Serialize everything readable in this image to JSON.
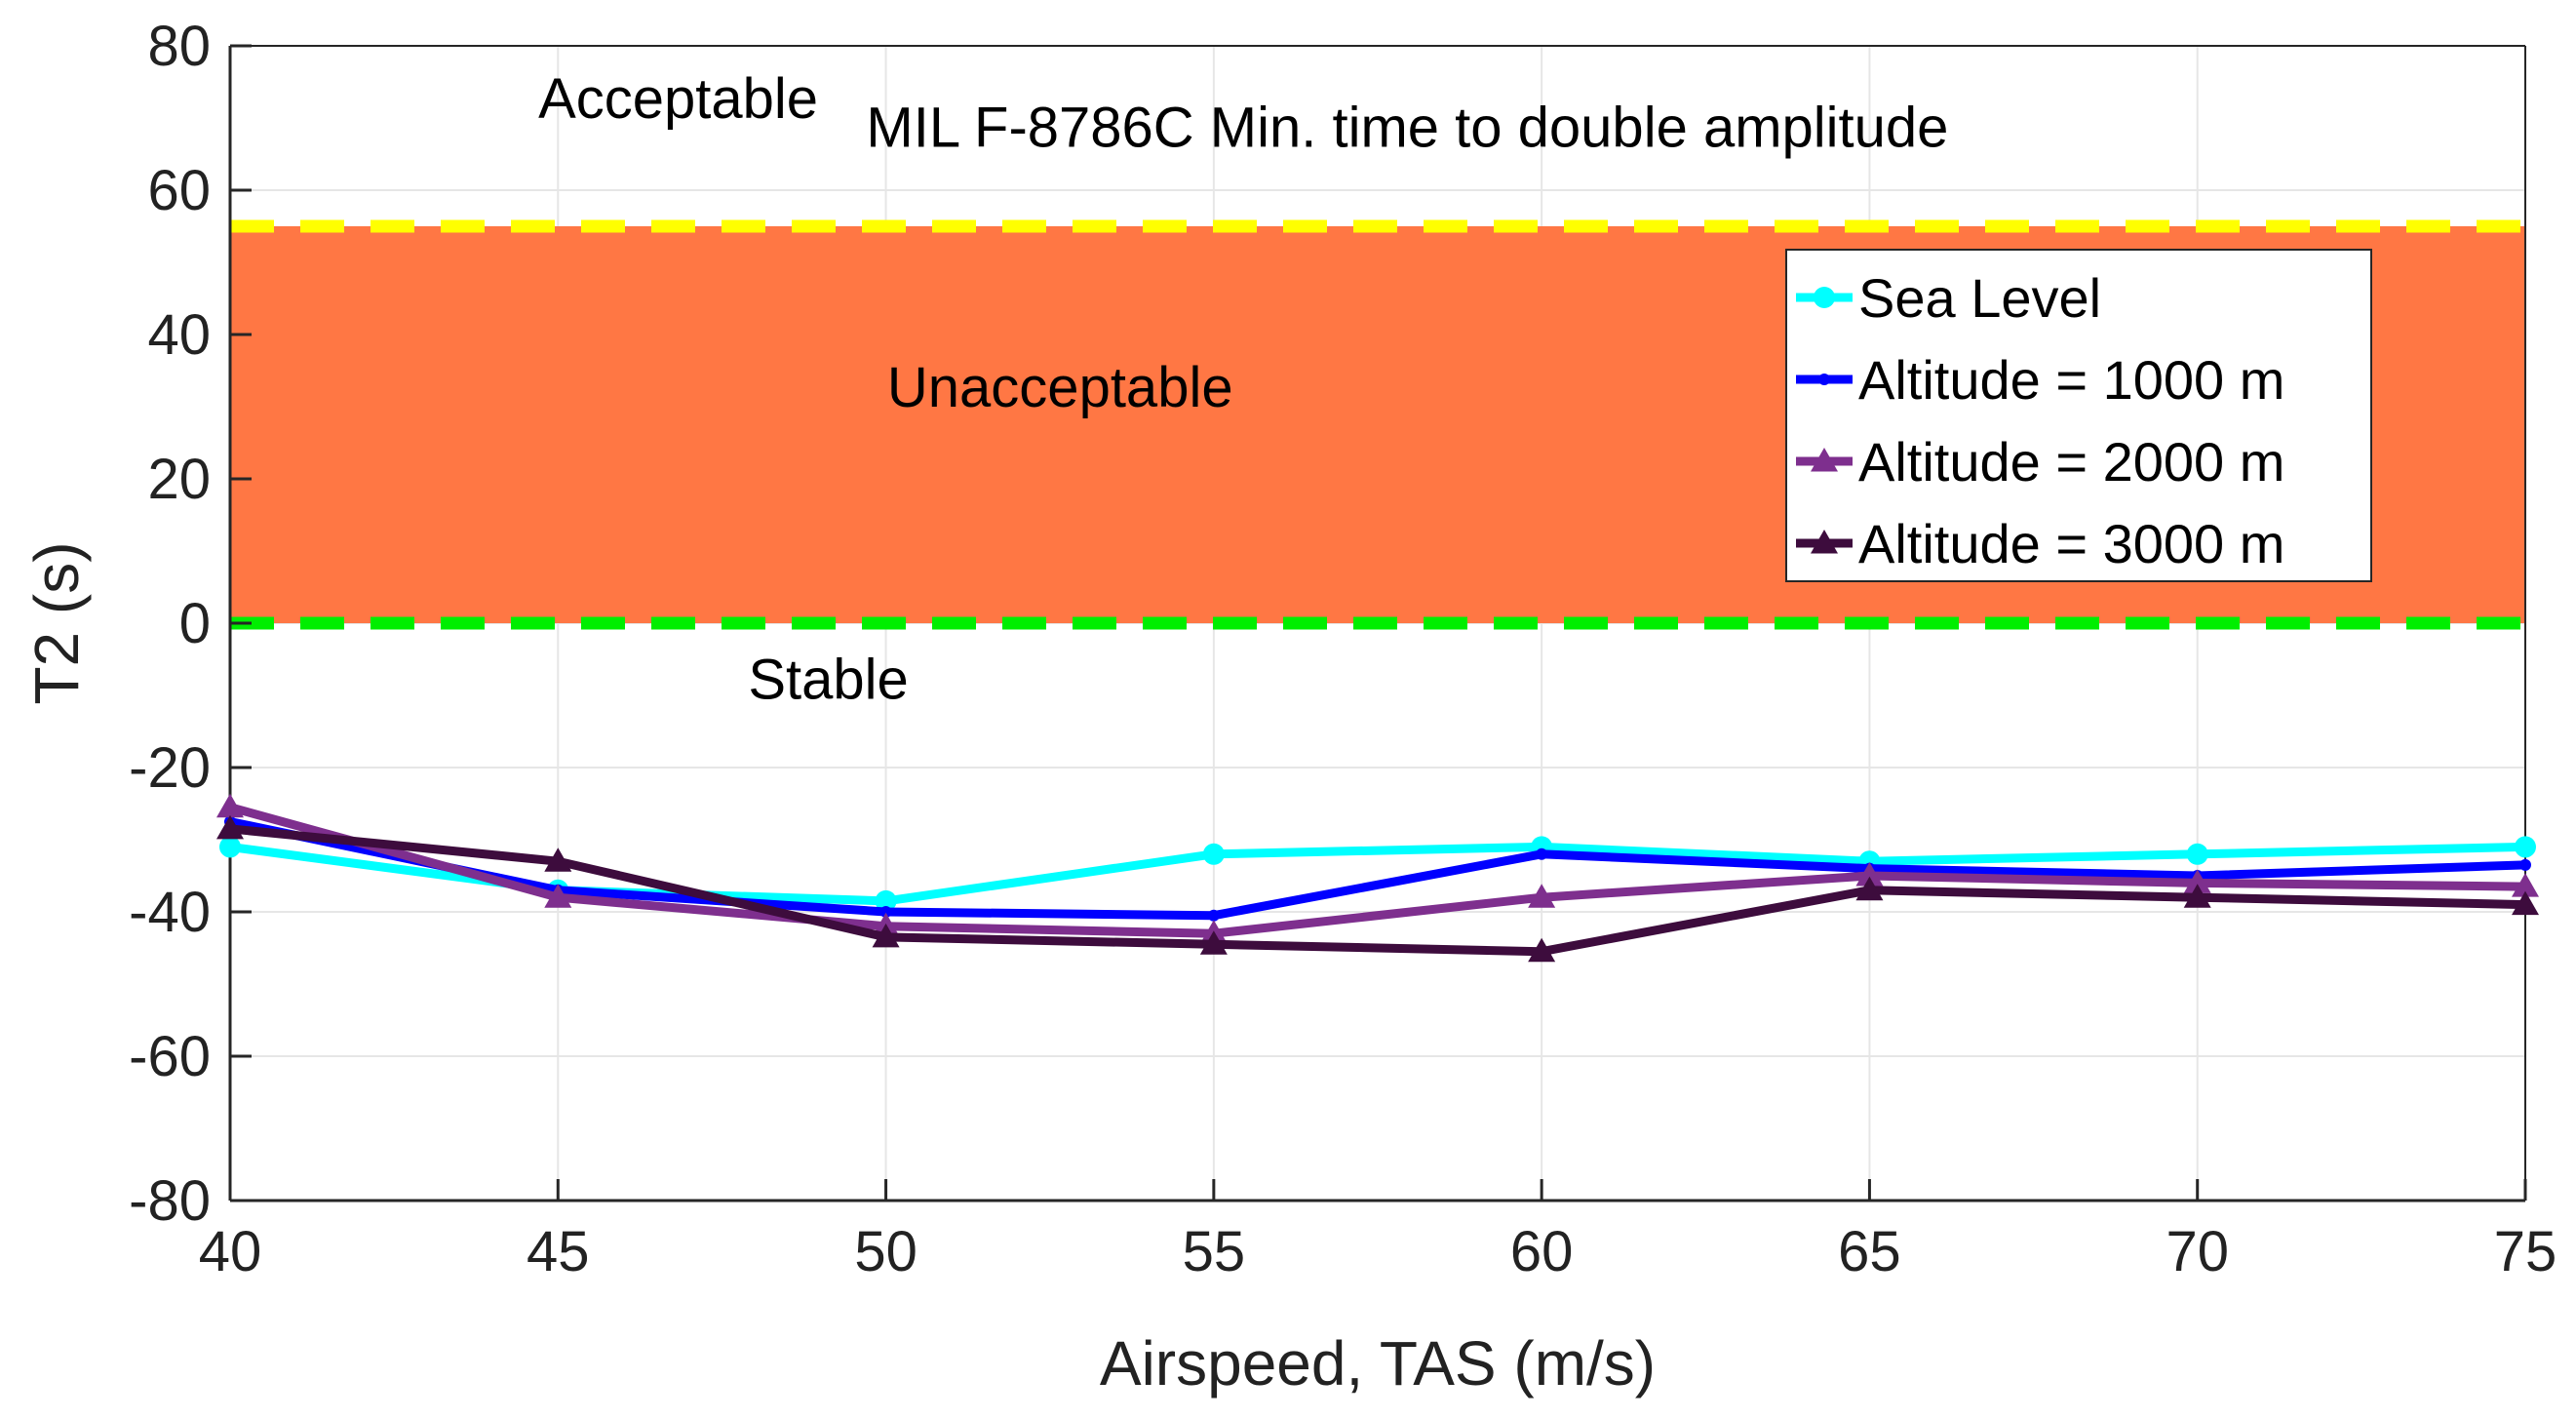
{
  "chart_data": {
    "type": "line",
    "title": "",
    "xlabel": "Airspeed, TAS (m/s)",
    "ylabel": "T2 (s)",
    "xlim": [
      40,
      75
    ],
    "ylim": [
      -80,
      80
    ],
    "xticks": [
      40,
      45,
      50,
      55,
      60,
      65,
      70,
      75
    ],
    "yticks": [
      -80,
      -60,
      -40,
      -20,
      0,
      20,
      40,
      60,
      80
    ],
    "grid": true,
    "legend_position": "top-right",
    "x": [
      40,
      45,
      50,
      55,
      60,
      65,
      70,
      75
    ],
    "series": [
      {
        "name": "Sea Level",
        "color": "#00ffff",
        "marker": "circle",
        "values": [
          -31,
          -37,
          -38.5,
          -32,
          -31,
          -33,
          -32,
          -31
        ]
      },
      {
        "name": "Altitude = 1000 m",
        "color": "#0000ff",
        "marker": "dot",
        "values": [
          -27.5,
          -37,
          -40,
          -40.5,
          -32,
          -34,
          -35,
          -33.5
        ]
      },
      {
        "name": "Altitude = 2000 m",
        "color": "#7e2f8e",
        "marker": "triangle",
        "values": [
          -25.5,
          -38,
          -42,
          -43,
          -38,
          -35,
          -36,
          -36.5
        ]
      },
      {
        "name": "Altitude = 3000 m",
        "color": "#3d0c3d",
        "marker": "triangle",
        "values": [
          -28.5,
          -33,
          -43.5,
          -44.5,
          -45.5,
          -37,
          -38,
          -39
        ]
      }
    ],
    "regions": {
      "unacceptable": {
        "from": 0,
        "to": 55,
        "color": "#ff7744",
        "label": "Unacceptable"
      },
      "upper_limit": {
        "value": 55,
        "color": "#ffff00"
      },
      "lower_limit": {
        "value": 0,
        "color": "#00ee00"
      }
    },
    "annotations": {
      "acceptable": {
        "text": "Acceptable",
        "x": 44.7,
        "y": 70
      },
      "spec": {
        "text": "MIL F-8786C Min. time to double amplitude",
        "x": 49.7,
        "y": 66
      },
      "unacceptable": {
        "text": "Unacceptable",
        "x": 50.02,
        "y": 30
      },
      "stable": {
        "text": "Stable",
        "x": 47.9,
        "y": -10.5
      }
    }
  }
}
